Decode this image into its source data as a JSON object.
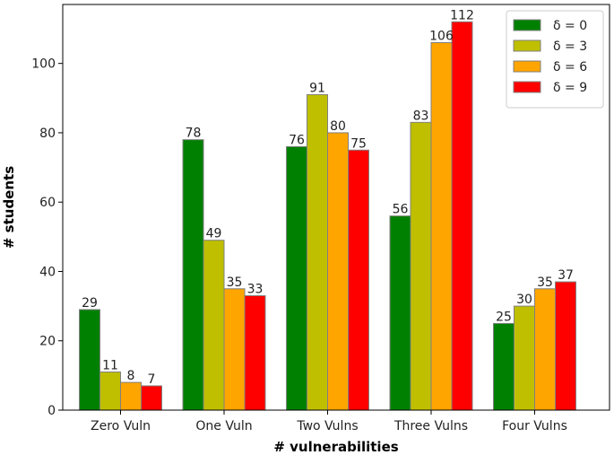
{
  "chart_data": {
    "type": "bar",
    "title": "",
    "xlabel": "# vulnerabilities",
    "ylabel": "# students",
    "categories": [
      "Zero Vuln",
      "One Vuln",
      "Two Vulns",
      "Three Vulns",
      "Four Vulns"
    ],
    "series": [
      {
        "name": "δ = 0",
        "color": "#008000",
        "values": [
          29,
          78,
          76,
          56,
          25
        ]
      },
      {
        "name": "δ = 3",
        "color": "#bfbf00",
        "values": [
          11,
          49,
          91,
          83,
          30
        ]
      },
      {
        "name": "δ = 6",
        "color": "#ffa500",
        "values": [
          8,
          35,
          80,
          106,
          35
        ]
      },
      {
        "name": "δ = 9",
        "color": "#ff0000",
        "values": [
          7,
          33,
          75,
          112,
          37
        ]
      }
    ],
    "ylim": [
      0,
      117
    ],
    "yticks": [
      0,
      20,
      40,
      60,
      80,
      100
    ],
    "grid": false,
    "legend": "top-right",
    "bar_edge_color": "#808080"
  }
}
